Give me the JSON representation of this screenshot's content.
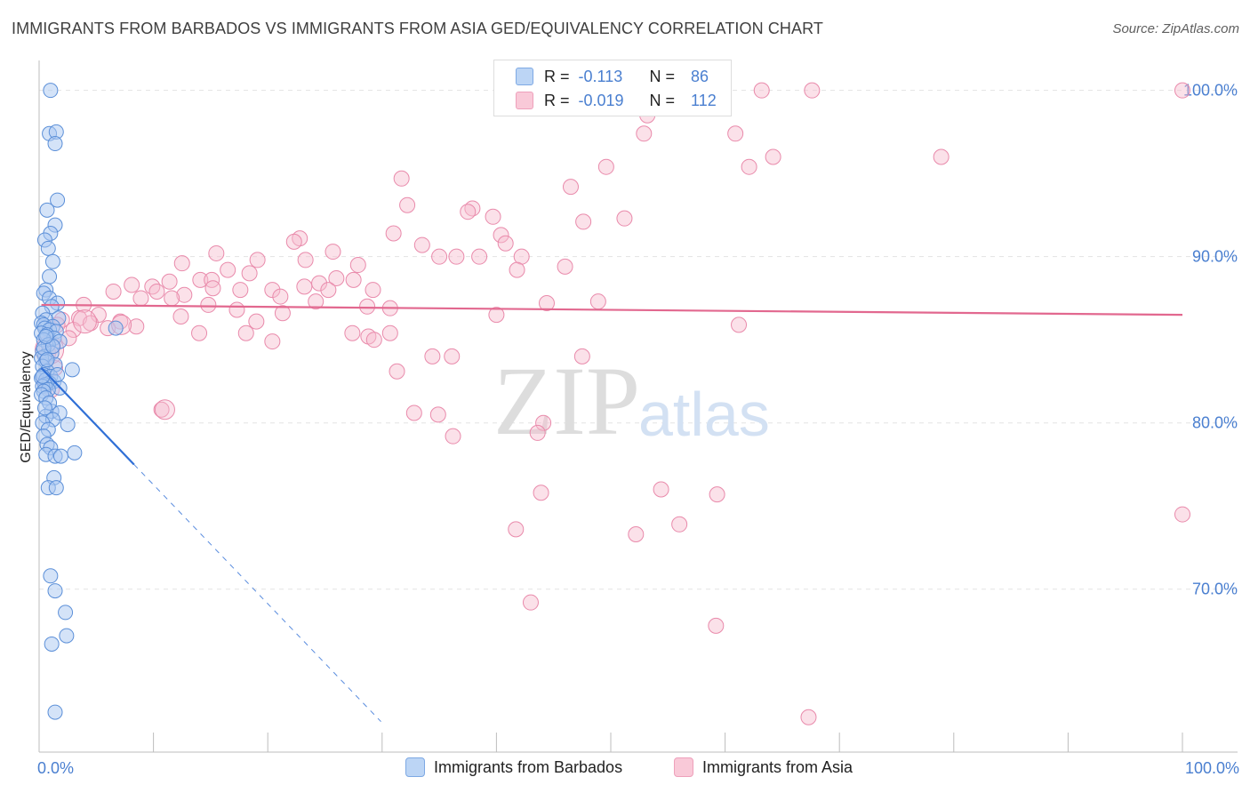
{
  "title": "IMMIGRANTS FROM BARBADOS VS IMMIGRANTS FROM ASIA GED/EQUIVALENCY CORRELATION CHART",
  "source": "Source: ZipAtlas.com",
  "watermark": {
    "zip": "ZIP",
    "atlas": "atlas"
  },
  "stats": {
    "barbados": {
      "r_label": "R =",
      "r_value": "-0.113",
      "n_label": "N =",
      "n_value": "86"
    },
    "asia": {
      "r_label": "R =",
      "r_value": "-0.019",
      "n_label": "N =",
      "n_value": "112"
    }
  },
  "legend": {
    "barbados": "Immigrants from Barbados",
    "asia": "Immigrants from Asia"
  },
  "colors": {
    "barbados_fill": "#a9c8f1",
    "barbados_stroke": "#5b8fd8",
    "barbados_line": "#2f6fd6",
    "asia_fill": "#f6bccf",
    "asia_stroke": "#e98aab",
    "asia_line": "#e2688f",
    "tick": "#4a7fd0",
    "grid": "#e3e3e3"
  },
  "chart_data": {
    "type": "scatter",
    "title": "IMMIGRANTS FROM BARBADOS VS IMMIGRANTS FROM ASIA GED/EQUIVALENCY CORRELATION CHART",
    "xlabel": "",
    "ylabel": "GED/Equivalency",
    "xlim": [
      0,
      100
    ],
    "ylim": [
      60.2,
      101.8
    ],
    "x_tick_labels": [
      {
        "value": 0,
        "label": "0.0%"
      },
      {
        "value": 100,
        "label": "100.0%"
      }
    ],
    "y_tick_labels": [
      {
        "value": 100,
        "label": "100.0%"
      },
      {
        "value": 90,
        "label": "90.0%"
      },
      {
        "value": 80,
        "label": "80.0%"
      },
      {
        "value": 70,
        "label": "70.0%"
      }
    ],
    "series": [
      {
        "name": "Immigrants from Barbados",
        "r": -0.113,
        "n": 86,
        "trend": {
          "x0": 0.2,
          "y0": 83.3,
          "x1": 8.3,
          "y1": 77.5,
          "dash_x1": 29.9
        },
        "points": [
          [
            1.0,
            100.0
          ],
          [
            0.9,
            97.4
          ],
          [
            1.5,
            97.5
          ],
          [
            1.4,
            96.8
          ],
          [
            1.6,
            93.4
          ],
          [
            0.7,
            92.8
          ],
          [
            1.4,
            91.9
          ],
          [
            1.0,
            91.4
          ],
          [
            0.5,
            91.0
          ],
          [
            0.8,
            90.5
          ],
          [
            1.2,
            89.7
          ],
          [
            0.9,
            88.8
          ],
          [
            0.6,
            88.0
          ],
          [
            0.4,
            87.8
          ],
          [
            0.9,
            87.5
          ],
          [
            1.6,
            87.2
          ],
          [
            1.1,
            87.0
          ],
          [
            0.3,
            86.6
          ],
          [
            1.7,
            86.3
          ],
          [
            0.6,
            86.2
          ],
          [
            0.2,
            86.0
          ],
          [
            0.4,
            85.9
          ],
          [
            1.2,
            85.8
          ],
          [
            0.5,
            85.7
          ],
          [
            0.9,
            85.6
          ],
          [
            1.5,
            85.5
          ],
          [
            0.2,
            85.4
          ],
          [
            0.7,
            85.3
          ],
          [
            1.3,
            85.1
          ],
          [
            0.4,
            85.0
          ],
          [
            6.7,
            85.7
          ],
          [
            1.8,
            84.9
          ],
          [
            0.8,
            84.7
          ],
          [
            0.3,
            84.3
          ],
          [
            1.1,
            84.2
          ],
          [
            0.5,
            84.0
          ],
          [
            0.2,
            83.9
          ],
          [
            0.6,
            83.7
          ],
          [
            1.4,
            83.5
          ],
          [
            0.3,
            83.4
          ],
          [
            2.9,
            83.2
          ],
          [
            0.7,
            83.1
          ],
          [
            0.4,
            82.9
          ],
          [
            1.0,
            82.8
          ],
          [
            0.2,
            82.7
          ],
          [
            0.6,
            82.6
          ],
          [
            1.3,
            82.5
          ],
          [
            0.9,
            82.4
          ],
          [
            0.5,
            82.3
          ],
          [
            0.3,
            82.2
          ],
          [
            1.8,
            82.1
          ],
          [
            0.8,
            82.0
          ],
          [
            0.4,
            81.9
          ],
          [
            0.2,
            81.7
          ],
          [
            0.6,
            81.5
          ],
          [
            1.1,
            80.7
          ],
          [
            1.8,
            80.6
          ],
          [
            0.6,
            80.4
          ],
          [
            1.2,
            80.2
          ],
          [
            0.3,
            80.0
          ],
          [
            2.5,
            79.9
          ],
          [
            0.8,
            79.6
          ],
          [
            0.4,
            79.2
          ],
          [
            0.7,
            78.7
          ],
          [
            1.0,
            78.5
          ],
          [
            3.1,
            78.2
          ],
          [
            0.6,
            78.1
          ],
          [
            1.4,
            78.0
          ],
          [
            1.9,
            78.0
          ],
          [
            1.3,
            76.7
          ],
          [
            0.8,
            76.1
          ],
          [
            1.5,
            76.1
          ],
          [
            1.0,
            70.8
          ],
          [
            1.4,
            69.9
          ],
          [
            2.3,
            68.6
          ],
          [
            2.4,
            67.2
          ],
          [
            1.1,
            66.7
          ],
          [
            1.4,
            62.6
          ],
          [
            0.4,
            84.5
          ],
          [
            0.7,
            83.8
          ],
          [
            0.3,
            82.8
          ],
          [
            1.6,
            82.9
          ],
          [
            0.9,
            81.2
          ],
          [
            0.5,
            80.9
          ],
          [
            1.2,
            84.6
          ],
          [
            0.6,
            85.2
          ]
        ]
      },
      {
        "name": "Immigrants from Asia",
        "r": -0.019,
        "n": 112,
        "trend": {
          "x0": 0.2,
          "y0": 87.1,
          "x1": 100,
          "y1": 86.5
        },
        "points": [
          [
            63.2,
            100.0
          ],
          [
            67.6,
            100.0
          ],
          [
            100.0,
            100.0
          ],
          [
            53.2,
            98.5
          ],
          [
            60.9,
            97.4
          ],
          [
            52.9,
            97.4
          ],
          [
            64.2,
            96.0
          ],
          [
            78.9,
            96.0
          ],
          [
            49.6,
            95.4
          ],
          [
            62.1,
            95.4
          ],
          [
            31.7,
            94.7
          ],
          [
            46.5,
            94.2
          ],
          [
            32.2,
            93.1
          ],
          [
            37.9,
            92.9
          ],
          [
            37.5,
            92.7
          ],
          [
            39.7,
            92.4
          ],
          [
            51.2,
            92.3
          ],
          [
            47.6,
            92.1
          ],
          [
            31.0,
            91.4
          ],
          [
            40.4,
            91.3
          ],
          [
            22.8,
            91.1
          ],
          [
            22.3,
            90.9
          ],
          [
            33.5,
            90.7
          ],
          [
            40.8,
            90.8
          ],
          [
            15.5,
            90.2
          ],
          [
            25.7,
            90.3
          ],
          [
            35.0,
            90.0
          ],
          [
            36.5,
            90.0
          ],
          [
            38.5,
            90.0
          ],
          [
            42.2,
            90.0
          ],
          [
            23.3,
            89.8
          ],
          [
            19.1,
            89.8
          ],
          [
            12.5,
            89.6
          ],
          [
            27.9,
            89.5
          ],
          [
            46.0,
            89.4
          ],
          [
            16.5,
            89.2
          ],
          [
            41.8,
            89.2
          ],
          [
            18.4,
            89.0
          ],
          [
            26.0,
            88.7
          ],
          [
            27.5,
            88.6
          ],
          [
            14.1,
            88.6
          ],
          [
            15.1,
            88.6
          ],
          [
            11.4,
            88.5
          ],
          [
            24.5,
            88.4
          ],
          [
            23.2,
            88.2
          ],
          [
            8.1,
            88.3
          ],
          [
            9.9,
            88.2
          ],
          [
            15.2,
            88.1
          ],
          [
            20.4,
            88.0
          ],
          [
            17.6,
            88.0
          ],
          [
            25.3,
            88.0
          ],
          [
            29.2,
            88.0
          ],
          [
            6.5,
            87.9
          ],
          [
            10.3,
            87.9
          ],
          [
            12.7,
            87.7
          ],
          [
            21.1,
            87.6
          ],
          [
            8.9,
            87.5
          ],
          [
            11.6,
            87.5
          ],
          [
            24.2,
            87.3
          ],
          [
            48.9,
            87.3
          ],
          [
            44.4,
            87.2
          ],
          [
            14.8,
            87.1
          ],
          [
            28.7,
            87.0
          ],
          [
            30.7,
            86.9
          ],
          [
            3.9,
            87.1
          ],
          [
            17.3,
            86.8
          ],
          [
            5.2,
            86.5
          ],
          [
            12.4,
            86.4
          ],
          [
            21.3,
            86.6
          ],
          [
            40.0,
            86.5
          ],
          [
            3.5,
            86.3
          ],
          [
            2.0,
            86.2
          ],
          [
            7.1,
            86.1
          ],
          [
            19.0,
            86.1
          ],
          [
            4.5,
            86.0
          ],
          [
            1.6,
            85.9
          ],
          [
            8.5,
            85.8
          ],
          [
            6.0,
            85.7
          ],
          [
            3.0,
            85.6
          ],
          [
            61.2,
            85.9
          ],
          [
            14.0,
            85.4
          ],
          [
            18.1,
            85.4
          ],
          [
            30.7,
            85.4
          ],
          [
            27.4,
            85.4
          ],
          [
            28.8,
            85.2
          ],
          [
            2.6,
            85.1
          ],
          [
            20.4,
            84.9
          ],
          [
            29.3,
            85.0
          ],
          [
            1.2,
            84.6
          ],
          [
            0.8,
            84.2
          ],
          [
            34.4,
            84.0
          ],
          [
            36.1,
            84.0
          ],
          [
            47.5,
            84.0
          ],
          [
            1.4,
            83.3
          ],
          [
            31.3,
            83.1
          ],
          [
            0.5,
            82.4
          ],
          [
            1.1,
            82.0
          ],
          [
            10.7,
            80.8
          ],
          [
            32.8,
            80.6
          ],
          [
            34.9,
            80.5
          ],
          [
            44.1,
            80.0
          ],
          [
            43.6,
            79.4
          ],
          [
            36.2,
            79.2
          ],
          [
            43.9,
            75.8
          ],
          [
            54.4,
            76.0
          ],
          [
            59.3,
            75.7
          ],
          [
            100.0,
            74.5
          ],
          [
            56.0,
            73.9
          ],
          [
            41.7,
            73.6
          ],
          [
            52.2,
            73.3
          ],
          [
            43.0,
            69.2
          ],
          [
            59.2,
            67.8
          ],
          [
            67.3,
            62.3
          ]
        ]
      }
    ]
  }
}
